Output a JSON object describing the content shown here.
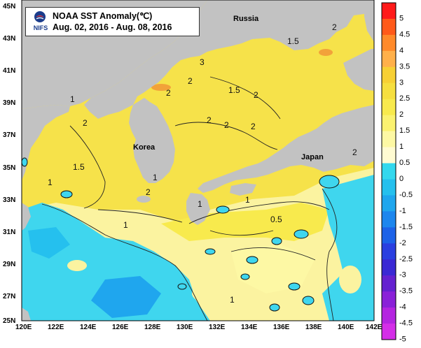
{
  "title": {
    "heading": "NOAA SST Anomaly(℃)",
    "period": "Aug. 02, 2016 - Aug. 08, 2016",
    "logo_text": "NIFS"
  },
  "axes": {
    "lat_labels": [
      "45N",
      "43N",
      "41N",
      "39N",
      "37N",
      "35N",
      "33N",
      "31N",
      "29N",
      "27N",
      "25N"
    ],
    "lon_labels": [
      "120E",
      "122E",
      "124E",
      "126E",
      "128E",
      "130E",
      "132E",
      "134E",
      "136E",
      "138E",
      "140E",
      "142E"
    ]
  },
  "places": {
    "russia": "Russia",
    "korea": "Korea",
    "japan": "Japan"
  },
  "contour_labels": [
    "1.5",
    "3",
    "2",
    "2",
    "1.5",
    "2",
    "2",
    "2",
    "2",
    "1",
    "2",
    "1.5",
    "1",
    "2",
    "1",
    "1",
    "1",
    "0.5",
    "1",
    "2",
    "2",
    "1"
  ],
  "colorbar": {
    "labels": [
      "5",
      "4.5",
      "4",
      "3.5",
      "3",
      "2.5",
      "2",
      "1.5",
      "1",
      "0.5",
      "0",
      "-0.5",
      "-1",
      "-1.5",
      "-2",
      "-2.5",
      "-3",
      "-3.5",
      "-4",
      "-4.5",
      "-5"
    ],
    "colors": [
      "#ff1a1a",
      "#ff5a1a",
      "#ff8a2a",
      "#ffb04a",
      "#f7d034",
      "#f6df3f",
      "#f8ea4d",
      "#fbf270",
      "#fdf8a4",
      "#fffbd2",
      "#33d8ee",
      "#25c0ee",
      "#1fa6ee",
      "#1c86ee",
      "#1c62e8",
      "#2a3fe0",
      "#3a28d4",
      "#6420d0",
      "#8a20d8",
      "#b424e0",
      "#d42ee8"
    ]
  },
  "colors": {
    "land": "#c2c2c2",
    "warm": "#f6e24a",
    "mild": "#fbf3a0",
    "cool": "#3fd6ee",
    "hot": "#f2a23a"
  }
}
